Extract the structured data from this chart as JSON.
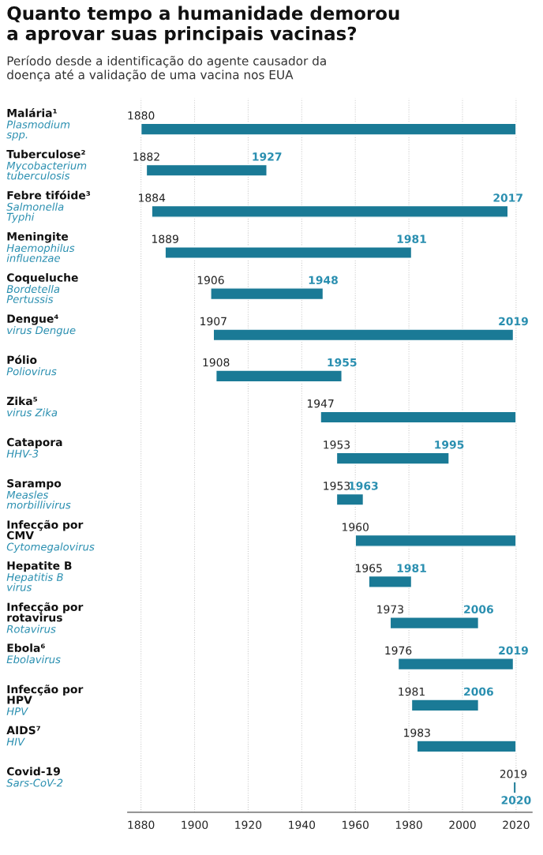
{
  "chart_data": {
    "type": "bar",
    "orientation": "horizontal",
    "title": "Quanto tempo a humanidade demorou\na aprovar suas principais vacinas?",
    "subtitle": "Período desde a identificação do agente causador da\ndoença até a validação de uma vacina nos EUA",
    "categories": [
      "Malária¹",
      "Tuberculose²",
      "Febre tifóide³",
      "Meningite",
      "Coqueluche",
      "Dengue⁴",
      "Pólio",
      "Zika⁵",
      "Catapora",
      "Sarampo",
      "Infecção por\nCMV",
      "Hepatite B",
      "Infecção por\nrotavirus",
      "Ebola⁶",
      "Infecção por\nHPV",
      "AIDS⁷",
      "Covid-19"
    ],
    "base": [
      1880,
      1882,
      1884,
      1889,
      1906,
      1907,
      1908,
      1947,
      1953,
      1953,
      1960,
      1965,
      1973,
      1976,
      1981,
      1983,
      2019
    ],
    "values": [
      140,
      45,
      133,
      92,
      42,
      112,
      47,
      73,
      42,
      10,
      60,
      16,
      33,
      43,
      25,
      37,
      1
    ],
    "value_labels": [
      null,
      "1927",
      "2017",
      "1981",
      "1948",
      "2019",
      "1955",
      null,
      "1995",
      "1963",
      null,
      "1981",
      "2006",
      "2019",
      "2006",
      null,
      "2020"
    ],
    "color": "#1a7a96",
    "xlim": [
      1875,
      2026
    ],
    "xticks": [
      1880,
      1900,
      1920,
      1940,
      1960,
      1980,
      2000,
      2020
    ],
    "grid": "x",
    "annotations": [
      "Plasmodium\nspp.",
      "Mycobacterium\ntuberculosis",
      "Salmonella\nTyphi",
      "Haemophilus\ninfluenzae",
      "Bordetella\nPertussis",
      "virus Dengue",
      "Poliovirus",
      "virus Zika",
      "HHV-3",
      "Measles\nmorbillivirus",
      "Cytomegalovirus",
      "Hepatitis B\nvirus",
      "Rotavirus",
      "Ebolavirus",
      "HPV",
      "HIV",
      "Sars-CoV-2",
      {
        "text": "1880",
        "x": 1880,
        "y": "Malária¹"
      },
      {
        "text": "1882",
        "x": 1882,
        "y": "Tuberculose²"
      },
      {
        "text": "1884",
        "x": 1884,
        "y": "Febre tifóide³"
      },
      {
        "text": "1889",
        "x": 1889,
        "y": "Meningite"
      },
      {
        "text": "1906",
        "x": 1906,
        "y": "Coqueluche"
      },
      {
        "text": "1907",
        "x": 1907,
        "y": "Dengue⁴"
      },
      {
        "text": "1908",
        "x": 1908,
        "y": "Pólio"
      },
      {
        "text": "1947",
        "x": 1947,
        "y": "Zika⁵"
      },
      {
        "text": "1953",
        "x": 1953,
        "y": "Catapora"
      },
      {
        "text": "1953",
        "x": 1953,
        "y": "Sarampo"
      },
      {
        "text": "1960",
        "x": 1960,
        "y": "Infecção por\nCMV"
      },
      {
        "text": "1965",
        "x": 1965,
        "y": "Hepatite B"
      },
      {
        "text": "1973",
        "x": 1973,
        "y": "Infecção por\nrotavirus"
      },
      {
        "text": "1976",
        "x": 1976,
        "y": "Ebola⁶"
      },
      {
        "text": "1981",
        "x": 1981,
        "y": "Infecção por\nHPV"
      },
      {
        "text": "1983",
        "x": 1983,
        "y": "AIDS⁷"
      },
      {
        "text": "2019",
        "x": 2019,
        "y": "Covid-19"
      }
    ]
  }
}
